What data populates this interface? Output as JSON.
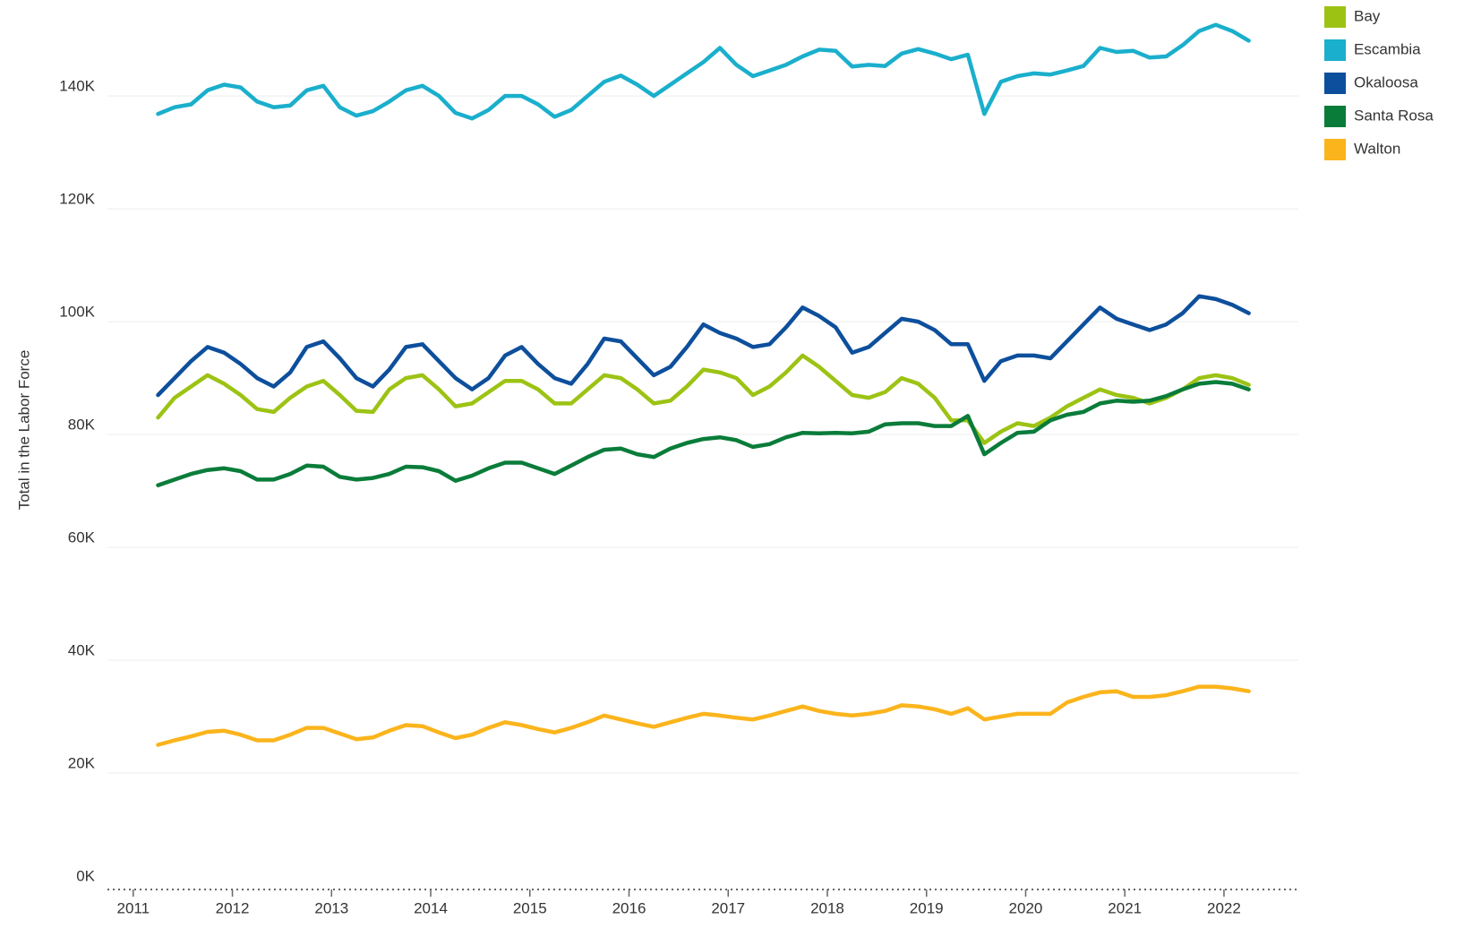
{
  "chart_data": {
    "type": "line",
    "y_label": "Total in the Labor Force",
    "x": [
      2011.25,
      2011.417,
      2011.583,
      2011.75,
      2011.917,
      2012.083,
      2012.25,
      2012.417,
      2012.583,
      2012.75,
      2012.917,
      2013.083,
      2013.25,
      2013.417,
      2013.583,
      2013.75,
      2013.917,
      2014.083,
      2014.25,
      2014.417,
      2014.583,
      2014.75,
      2014.917,
      2015.083,
      2015.25,
      2015.417,
      2015.583,
      2015.75,
      2015.917,
      2016.083,
      2016.25,
      2016.417,
      2016.583,
      2016.75,
      2016.917,
      2017.083,
      2017.25,
      2017.417,
      2017.583,
      2017.75,
      2017.917,
      2018.083,
      2018.25,
      2018.417,
      2018.583,
      2018.75,
      2018.917,
      2019.083,
      2019.25,
      2019.417,
      2019.583,
      2019.75,
      2019.917,
      2020.083,
      2020.25,
      2020.417,
      2020.583,
      2020.75,
      2020.917,
      2021.083,
      2021.25,
      2021.417,
      2021.583,
      2021.75,
      2021.917,
      2022.083,
      2022.25
    ],
    "series": [
      {
        "name": "Bay",
        "color": "#9cc314",
        "values": [
          83000,
          86500,
          88500,
          90500,
          89000,
          87000,
          84500,
          84000,
          86500,
          88500,
          89500,
          87000,
          84200,
          84000,
          88000,
          90000,
          90500,
          88000,
          85000,
          85500,
          87500,
          89500,
          89500,
          88000,
          85500,
          85500,
          88000,
          90500,
          90000,
          88000,
          85500,
          86000,
          88500,
          91500,
          91000,
          90000,
          87000,
          88500,
          91000,
          94000,
          92000,
          89500,
          87000,
          86500,
          87500,
          90000,
          89000,
          86500,
          82500,
          82500,
          78500,
          80500,
          82000,
          81500,
          83000,
          85000,
          86500,
          88000,
          87000,
          86500,
          85500,
          86500,
          88000,
          90000,
          90500,
          90000,
          88800
        ]
      },
      {
        "name": "Escambia",
        "color": "#1aafcc",
        "values": [
          136800,
          138000,
          138500,
          141000,
          142000,
          141500,
          139000,
          138000,
          138300,
          141000,
          141800,
          138000,
          136500,
          137300,
          139000,
          141000,
          141800,
          140000,
          137000,
          136000,
          137500,
          140000,
          140000,
          138500,
          136300,
          137500,
          140000,
          142500,
          143600,
          142000,
          140000,
          142000,
          144000,
          146000,
          148500,
          145500,
          143500,
          144500,
          145500,
          147000,
          148200,
          148000,
          145200,
          145500,
          145300,
          147500,
          148300,
          147500,
          146500,
          147300,
          136800,
          142500,
          143500,
          144000,
          143800,
          144500,
          145300,
          148500,
          147800,
          148000,
          146800,
          147000,
          149000,
          151500,
          152600,
          151500,
          149800
        ]
      },
      {
        "name": "Okaloosa",
        "color": "#0d4f9c",
        "values": [
          87000,
          90000,
          93000,
          95500,
          94500,
          92500,
          90000,
          88500,
          91000,
          95500,
          96500,
          93500,
          90000,
          88500,
          91500,
          95500,
          96000,
          93000,
          90000,
          88000,
          90000,
          94000,
          95500,
          92500,
          90000,
          89000,
          92500,
          97000,
          96500,
          93500,
          90500,
          92000,
          95500,
          99500,
          98000,
          97000,
          95500,
          96000,
          99000,
          102500,
          101000,
          99000,
          94500,
          95500,
          98000,
          100500,
          100000,
          98500,
          96000,
          96000,
          89500,
          93000,
          94000,
          94000,
          93500,
          96500,
          99500,
          102500,
          100500,
          99500,
          98500,
          99500,
          101500,
          104500,
          104000,
          103000,
          101500
        ]
      },
      {
        "name": "Santa Rosa",
        "color": "#0a7c3a",
        "values": [
          71000,
          72000,
          73000,
          73700,
          74000,
          73500,
          72000,
          72000,
          73000,
          74500,
          74300,
          72500,
          72000,
          72300,
          73000,
          74300,
          74200,
          73500,
          71800,
          72700,
          74000,
          75000,
          75000,
          74000,
          73000,
          74500,
          76000,
          77300,
          77500,
          76500,
          76000,
          77500,
          78500,
          79200,
          79500,
          79000,
          77800,
          78300,
          79500,
          80300,
          80200,
          80300,
          80200,
          80500,
          81800,
          82000,
          82000,
          81500,
          81500,
          83300,
          76500,
          78500,
          80300,
          80500,
          82500,
          83500,
          84000,
          85500,
          86000,
          85800,
          86000,
          86800,
          88000,
          89000,
          89300,
          89000,
          88000
        ]
      },
      {
        "name": "Walton",
        "color": "#fbb41c",
        "values": [
          25000,
          25800,
          26500,
          27300,
          27500,
          26800,
          25800,
          25800,
          26800,
          28000,
          28000,
          27000,
          26000,
          26300,
          27500,
          28500,
          28300,
          27200,
          26200,
          26800,
          28000,
          29000,
          28500,
          27800,
          27200,
          28000,
          29000,
          30200,
          29500,
          28800,
          28200,
          29000,
          29800,
          30500,
          30200,
          29800,
          29500,
          30200,
          31000,
          31800,
          31000,
          30500,
          30200,
          30500,
          31000,
          32000,
          31800,
          31300,
          30500,
          31500,
          29500,
          30000,
          30500,
          30500,
          30500,
          32500,
          33500,
          34300,
          34500,
          33500,
          33500,
          33800,
          34500,
          35300,
          35300,
          35000,
          34500
        ]
      }
    ],
    "xlim": [
      2010.74,
      2022.75
    ],
    "xticks": [
      2011,
      2012,
      2013,
      2014,
      2015,
      2016,
      2017,
      2018,
      2019,
      2020,
      2021,
      2022
    ],
    "ylim": [
      0,
      157000
    ],
    "yticks": [
      {
        "value": 0,
        "label": "0K"
      },
      {
        "value": 20000,
        "label": "20K"
      },
      {
        "value": 40000,
        "label": "40K"
      },
      {
        "value": 60000,
        "label": "60K"
      },
      {
        "value": 80000,
        "label": "80K"
      },
      {
        "value": 100000,
        "label": "100K"
      },
      {
        "value": 120000,
        "label": "120K"
      },
      {
        "value": 140000,
        "label": "140K"
      }
    ],
    "grid": true,
    "legend": "right"
  }
}
